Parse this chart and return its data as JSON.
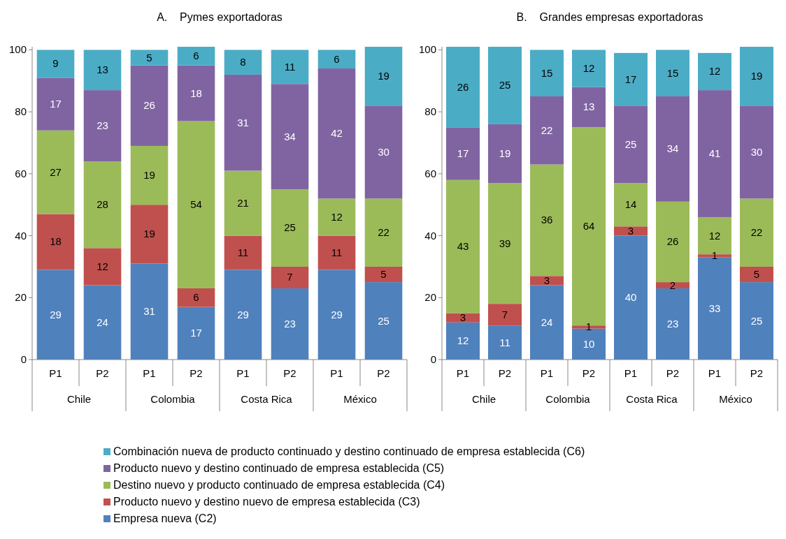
{
  "chart_data": [
    {
      "type": "bar",
      "title": "A.    Pymes exportadoras",
      "stacked": true,
      "data_labels": true,
      "categories": [
        "P1",
        "P2",
        "P1",
        "P2",
        "P1",
        "P2",
        "P1",
        "P2"
      ],
      "annotations": [
        "Chile",
        "Colombia",
        "Costa Rica",
        "México"
      ],
      "ylim": [
        0,
        101
      ],
      "yticks": [
        0,
        20,
        40,
        60,
        80,
        100
      ],
      "legend": "bottom",
      "series": [
        {
          "name": "Empresa nueva (C2)",
          "color": "#4f81bd",
          "values": [
            29,
            24,
            31,
            17,
            29,
            23,
            29,
            25
          ]
        },
        {
          "name": "Producto nuevo y destino nuevo de empresa establecida (C3)",
          "color": "#c0504d",
          "values": [
            18,
            12,
            19,
            6,
            11,
            7,
            11,
            5
          ]
        },
        {
          "name": "Destino nuevo y producto continuado de empresa establecida (C4)",
          "color": "#9bbb59",
          "values": [
            27,
            28,
            19,
            54,
            21,
            25,
            12,
            22
          ]
        },
        {
          "name": "Producto nuevo y destino continuado de empresa establecida (C5)",
          "color": "#8064a2",
          "values": [
            17,
            23,
            26,
            18,
            31,
            34,
            42,
            30
          ]
        },
        {
          "name": "Combinación nueva de producto continuado y destino continuado de empresa establecida (C6)",
          "color": "#4bacc6",
          "values": [
            9,
            13,
            5,
            6,
            8,
            11,
            6,
            19
          ]
        }
      ]
    },
    {
      "type": "bar",
      "title": "B.    Grandes empresas exportadoras",
      "stacked": true,
      "data_labels": true,
      "categories": [
        "P1",
        "P2",
        "P1",
        "P2",
        "P1",
        "P2",
        "P1",
        "P2"
      ],
      "annotations": [
        "Chile",
        "Colombia",
        "Costa Rica",
        "México"
      ],
      "ylim": [
        0,
        101
      ],
      "yticks": [
        0,
        20,
        40,
        60,
        80,
        100
      ],
      "series": [
        {
          "color": "#4f81bd",
          "values": [
            12,
            11,
            24,
            10,
            40,
            23,
            33,
            25
          ]
        },
        {
          "color": "#c0504d",
          "values": [
            3,
            7,
            3,
            1,
            3,
            2,
            1,
            5
          ]
        },
        {
          "color": "#9bbb59",
          "values": [
            43,
            39,
            36,
            64,
            14,
            26,
            12,
            22
          ]
        },
        {
          "color": "#8064a2",
          "values": [
            17,
            19,
            22,
            13,
            25,
            34,
            41,
            30
          ]
        },
        {
          "color": "#4bacc6",
          "values": [
            26,
            25,
            15,
            12,
            17,
            15,
            12,
            19
          ]
        }
      ]
    }
  ]
}
